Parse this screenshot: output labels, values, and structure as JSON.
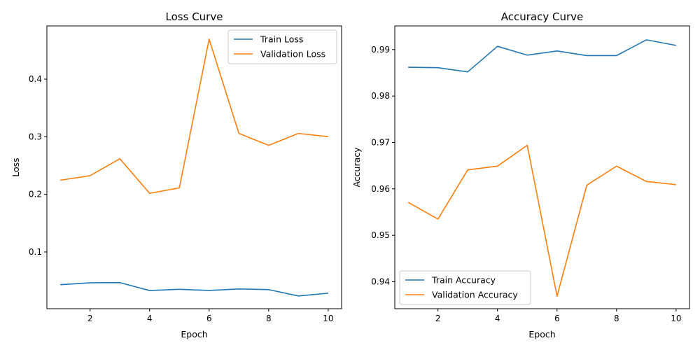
{
  "chart_data": [
    {
      "type": "line",
      "title": "Loss Curve",
      "xlabel": "Epoch",
      "ylabel": "Loss",
      "x": [
        1,
        2,
        3,
        4,
        5,
        6,
        7,
        8,
        9,
        10
      ],
      "xlim": [
        0.55,
        10.45
      ],
      "ylim": [
        0.0015,
        0.4925
      ],
      "xticks": [
        2,
        4,
        6,
        8,
        10
      ],
      "yticks": [
        0.1,
        0.2,
        0.3,
        0.4
      ],
      "ytick_labels": [
        "0.1",
        "0.2",
        "0.3",
        "0.4"
      ],
      "grid": false,
      "legend_position": "upper right",
      "series": [
        {
          "name": "Train Loss",
          "color": "#1f77b4",
          "values": [
            0.0432,
            0.0465,
            0.0468,
            0.033,
            0.0352,
            0.0332,
            0.0358,
            0.0346,
            0.0236,
            0.0284
          ]
        },
        {
          "name": "Validation Loss",
          "color": "#ff7f0e",
          "values": [
            0.2245,
            0.2325,
            0.2618,
            0.2019,
            0.2112,
            0.4695,
            0.3058,
            0.2852,
            0.3058,
            0.3002
          ]
        }
      ]
    },
    {
      "type": "line",
      "title": "Accuracy Curve",
      "xlabel": "Epoch",
      "ylabel": "Accuracy",
      "x": [
        1,
        2,
        3,
        4,
        5,
        6,
        7,
        8,
        9,
        10
      ],
      "xlim": [
        0.55,
        10.45
      ],
      "ylim": [
        0.9342,
        0.9951
      ],
      "xticks": [
        2,
        4,
        6,
        8,
        10
      ],
      "yticks": [
        0.94,
        0.95,
        0.96,
        0.97,
        0.98,
        0.99
      ],
      "ytick_labels": [
        "0.94",
        "0.95",
        "0.96",
        "0.97",
        "0.98",
        "0.99"
      ],
      "grid": false,
      "legend_position": "lower left",
      "series": [
        {
          "name": "Train Accuracy",
          "color": "#1f77b4",
          "values": [
            0.9862,
            0.9861,
            0.9852,
            0.9907,
            0.9888,
            0.9897,
            0.9887,
            0.9887,
            0.9921,
            0.9909
          ]
        },
        {
          "name": "Validation Accuracy",
          "color": "#ff7f0e",
          "values": [
            0.9571,
            0.9535,
            0.9641,
            0.9649,
            0.9694,
            0.9369,
            0.9608,
            0.9649,
            0.9616,
            0.9609
          ]
        }
      ]
    }
  ]
}
